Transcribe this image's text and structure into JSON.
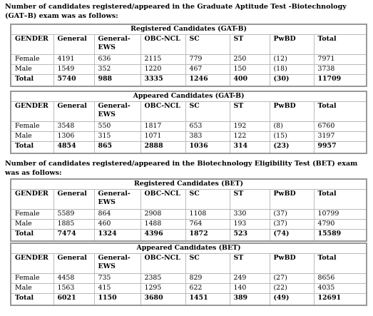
{
  "intro_gatb": "Number of candidates registered/appeared in the Graduate Aptitude Test -Biotechnology (GAT–B) exam was as follows:",
  "intro_bet": "Number of candidates registered/appeared in the Biotechnology Eligibility Test (BET) exam was as follows:",
  "tables": [
    {
      "title": "Registered Candidates (GAT-B)",
      "header": [
        "GENDER",
        "General",
        "General-EWS",
        "OBC-NCL",
        "SC",
        "ST",
        "PwBD",
        "Total"
      ],
      "rows": [
        [
          "Female",
          "4191",
          "636",
          "2115",
          "779",
          "250",
          "(12)",
          "7971"
        ],
        [
          "Male",
          "1549",
          "352",
          "1220",
          "467",
          "150",
          "(18)",
          "3738"
        ],
        [
          "Total",
          "5740",
          "988",
          "3335",
          "1246",
          "400",
          "(30)",
          "11709"
        ]
      ]
    },
    {
      "title": "Appeared Candidates (GAT-B)",
      "header": [
        "GENDER",
        "General",
        "General-EWS",
        "OBC-NCL",
        "SC",
        "ST",
        "PwBD",
        "Total"
      ],
      "rows": [
        [
          "Female",
          "3548",
          "550",
          "1817",
          "653",
          "192",
          "(8)",
          "6760"
        ],
        [
          "Male",
          "1306",
          "315",
          "1071",
          "383",
          "122",
          "(15)",
          "3197"
        ],
        [
          "Total",
          "4854",
          "865",
          "2888",
          "1036",
          "314",
          "(23)",
          "9957"
        ]
      ]
    },
    {
      "title": "Registered Candidates (BET)",
      "header": [
        "GENDER",
        "General",
        "General-EWS",
        "OBC-NCL",
        "SC",
        "ST",
        "PwBD",
        "Total"
      ],
      "rows": [
        [
          "Female",
          "5589",
          "864",
          "2908",
          "1108",
          "330",
          "(37)",
          "10799"
        ],
        [
          "Male",
          "1885",
          "460",
          "1488",
          "764",
          "193",
          "(37)",
          "4790"
        ],
        [
          "Total",
          "7474",
          "1324",
          "4396",
          "1872",
          "523",
          "(74)",
          "15589"
        ]
      ]
    },
    {
      "title": "Appeared Candidates (BET)",
      "header": [
        "GENDER",
        "General",
        "General-EWS",
        "OBC-NCL",
        "SC",
        "ST",
        "PwBD",
        "Total"
      ],
      "rows": [
        [
          "Female",
          "4458",
          "735",
          "2385",
          "829",
          "249",
          "(27)",
          "8656"
        ],
        [
          "Male",
          "1563",
          "415",
          "1295",
          "622",
          "140",
          "(22)",
          "4035"
        ],
        [
          "Total",
          "6021",
          "1150",
          "3680",
          "1451",
          "389",
          "(49)",
          "12691"
        ]
      ]
    }
  ]
}
